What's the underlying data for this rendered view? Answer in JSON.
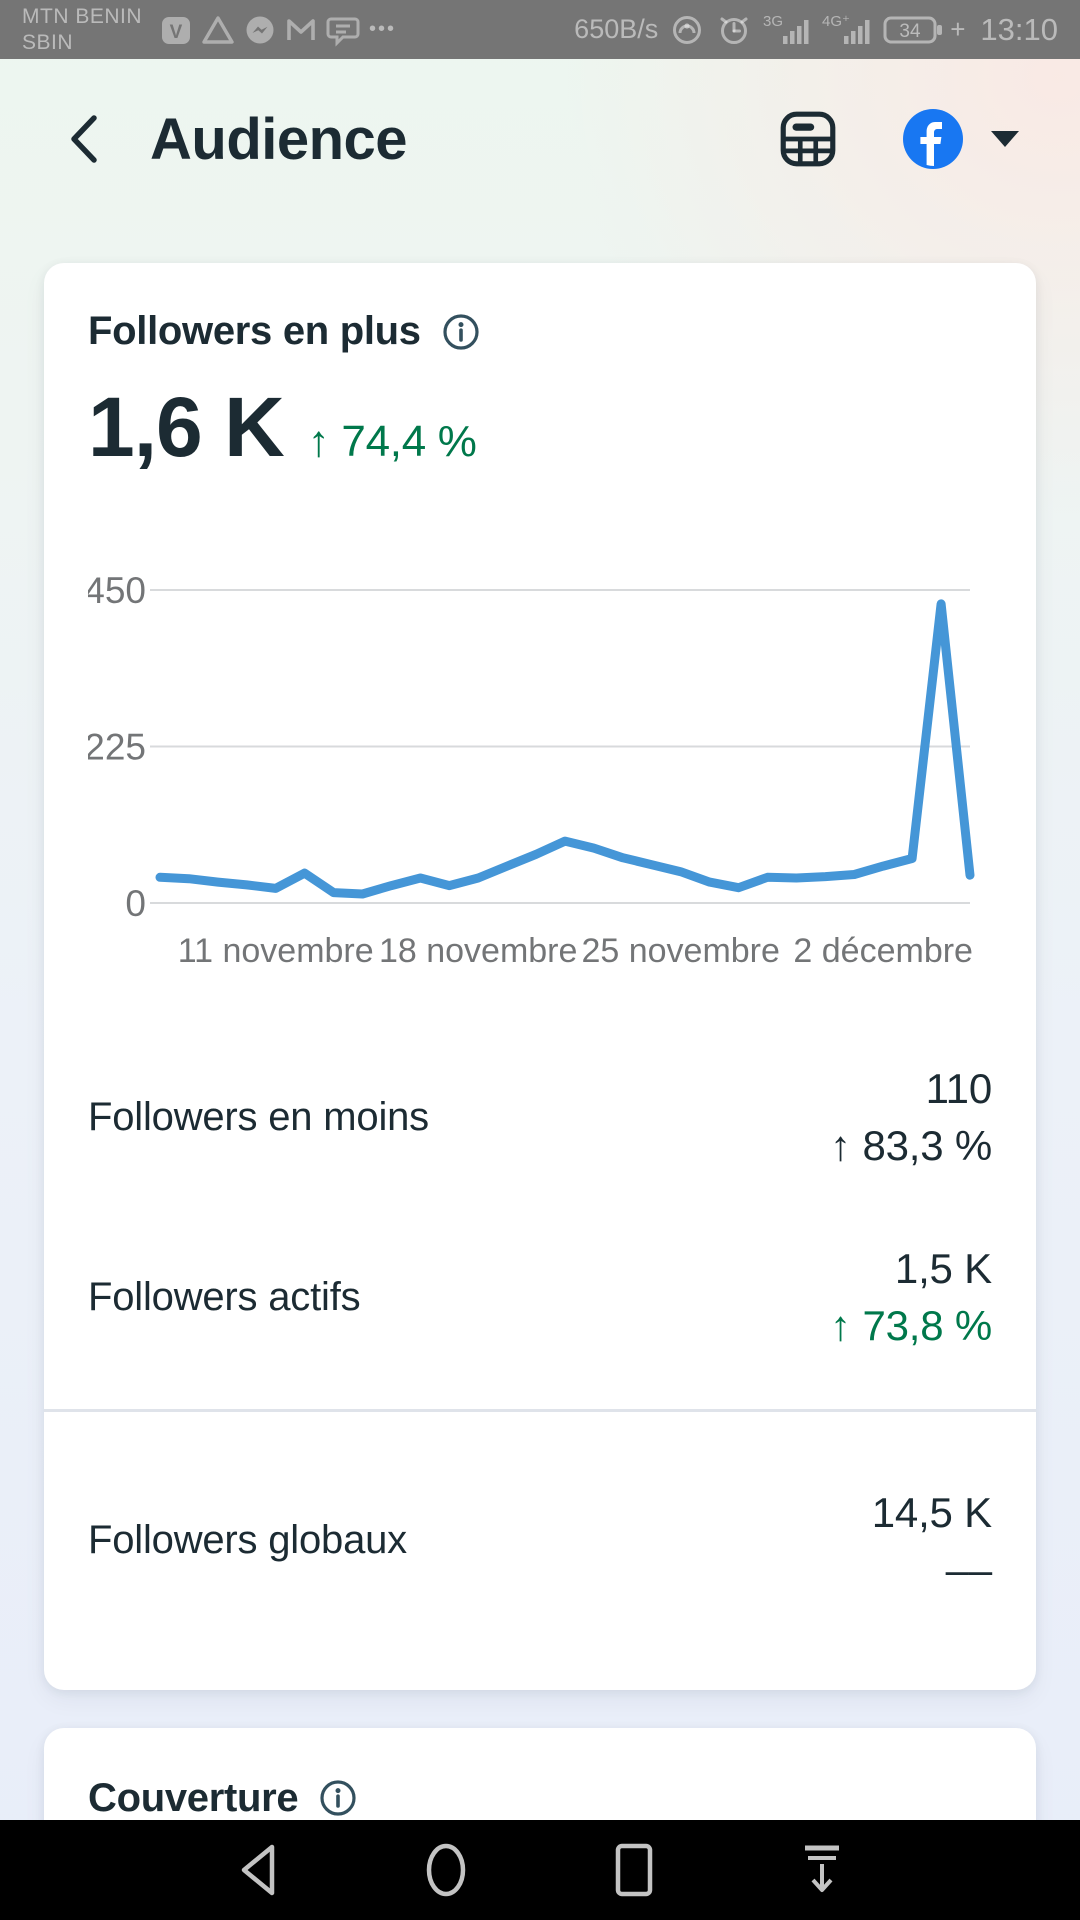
{
  "status_bar": {
    "carrier_line1": "MTN BENIN",
    "carrier_line2": "SBIN",
    "net_speed": "650B/s",
    "notification_icons": [
      "v-badge",
      "warning-triangle",
      "messenger",
      "gmail",
      "chat-bubble",
      "more-dots"
    ],
    "more_dots": "•••",
    "signal1_type": "3G",
    "signal2_type": "4G⁺",
    "battery_percent": "34",
    "battery_charging": "+",
    "time": "13:10"
  },
  "header": {
    "title": "Audience"
  },
  "card_followers": {
    "title": "Followers en plus",
    "value": "1,6 K",
    "delta_arrow": "↑",
    "delta": "74,4 %",
    "rows": [
      {
        "label": "Followers en moins",
        "value": "110",
        "delta_arrow": "↑",
        "delta": "83,3 %"
      },
      {
        "label": "Followers actifs",
        "value": "1,5 K",
        "delta_arrow": "↑",
        "delta": "73,8 %"
      },
      {
        "label": "Followers globaux",
        "value": "14,5 K",
        "delta_arrow": "",
        "delta": "––"
      }
    ]
  },
  "card_coverage": {
    "title": "Couverture"
  },
  "colors": {
    "text_dark": "#1c2b33",
    "positive_green": "#00784b",
    "chart_line_blue": "#4596d7",
    "facebook_blue": "#1877f2",
    "axis_gray": "#737577",
    "gridline_gray": "#d8dadc"
  },
  "chart_data": {
    "type": "line",
    "title": "Followers en plus (par jour)",
    "values": [
      37,
      35,
      30,
      26,
      21,
      43,
      15,
      13,
      25,
      36,
      25,
      36,
      53,
      70,
      89,
      79,
      65,
      55,
      45,
      30,
      22,
      37,
      36,
      38,
      41,
      53,
      64,
      430,
      40
    ],
    "x_tick_indices": [
      4,
      11,
      18,
      25
    ],
    "x_tick_labels": [
      "11 novembre",
      "18 novembre",
      "25 novembre",
      "2 décembre"
    ],
    "y_ticks": [
      0,
      225,
      450
    ],
    "ylim": [
      0,
      450
    ],
    "xlabel": "",
    "ylabel": "",
    "grid": true,
    "legend": "none",
    "line_color": "#4596d7"
  }
}
